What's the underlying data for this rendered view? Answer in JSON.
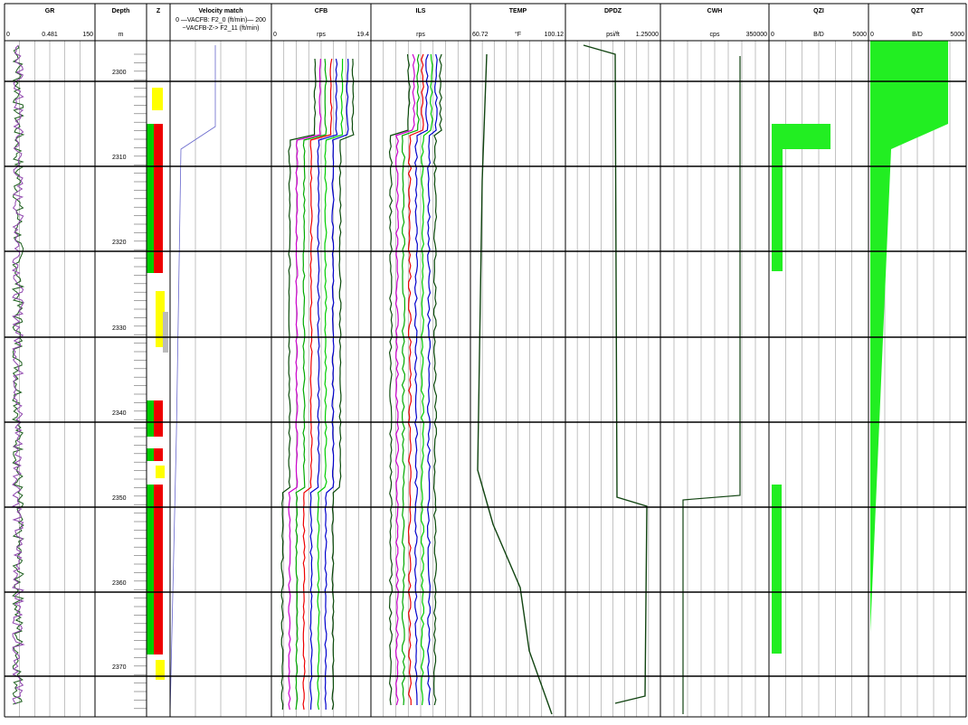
{
  "tracks": [
    {
      "name": "GR",
      "left": "0",
      "unit": "0.481",
      "right": "150"
    },
    {
      "name": "Depth",
      "unit": "m"
    },
    {
      "name": "Z"
    },
    {
      "name": "Velocity match",
      "legend": [
        "0 —VACFB: F2_0 (ft/min)— 200",
        "~VACFB-Z-> F2_11 (ft/min)"
      ]
    },
    {
      "name": "CFB",
      "left": "0",
      "unit": "rps",
      "right": "19.4"
    },
    {
      "name": "ILS",
      "unit": "rps"
    },
    {
      "name": "TEMP",
      "left": "60.72",
      "unit": "°F",
      "right": "100.12"
    },
    {
      "name": "DPDZ",
      "unit": "psi/ft",
      "right": "1.25000"
    },
    {
      "name": "CWH",
      "unit": "cps",
      "right": "350000"
    },
    {
      "name": "QZI",
      "left": "0",
      "unit": "B/D",
      "right": "5000"
    },
    {
      "name": "QZT",
      "left": "0",
      "unit": "B/D",
      "right": "5000"
    }
  ],
  "depth_labels": [
    "2300",
    "2310",
    "2320",
    "2330",
    "2340",
    "2350",
    "2360",
    "2370"
  ]
}
